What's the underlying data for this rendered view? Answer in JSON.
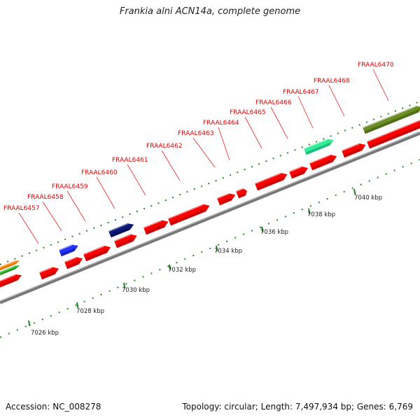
{
  "title": "Frankia alni ACN14a, complete genome",
  "footer": {
    "accession": "Accession: NC_008278",
    "summary": "Topology: circular; Length: 7,497,934 bp; Genes: 6,769"
  },
  "colors": {
    "cds": "#ff0000",
    "backbone": "#888888",
    "label": "#dd0000",
    "tick": "#1f7a1f"
  },
  "gene_labels": [
    "FRAAL6457",
    "FRAAL6458",
    "FRAAL6459",
    "FRAAL6460",
    "FRAAL6461",
    "FRAAL6462",
    "FRAAL6463",
    "FRAAL6464",
    "FRAAL6465",
    "FRAAL6466",
    "FRAAL6467",
    "FRAAL6468",
    "FRAAL6470"
  ],
  "tick_labels": [
    "7026 kbp",
    "7028 kbp",
    "7030 kbp",
    "7032 kbp",
    "7034 kbp",
    "7036 kbp",
    "7038 kbp",
    "7040 kbp"
  ]
}
